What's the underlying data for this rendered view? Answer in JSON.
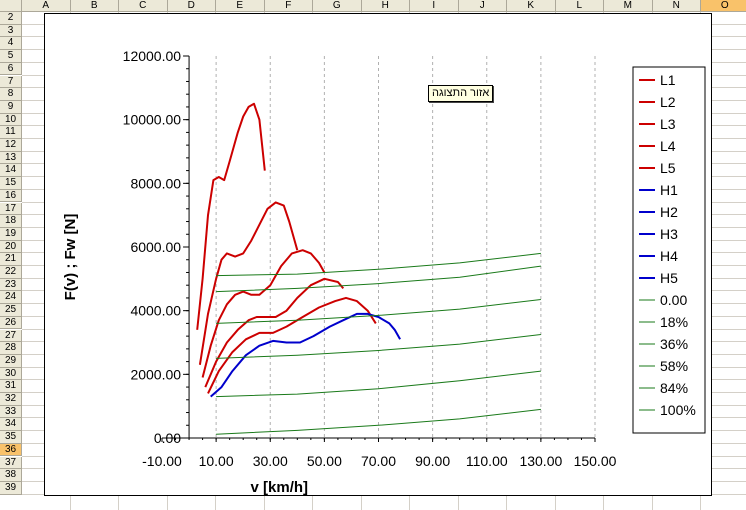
{
  "sheet": {
    "columns": [
      "A",
      "B",
      "C",
      "D",
      "E",
      "F",
      "G",
      "H",
      "I",
      "J",
      "K",
      "L",
      "M",
      "N",
      "O"
    ],
    "selected_column": "O",
    "rows": [
      "2",
      "3",
      "4",
      "5",
      "6",
      "7",
      "8",
      "9",
      "10",
      "11",
      "12",
      "13",
      "14",
      "15",
      "16",
      "17",
      "18",
      "19",
      "20",
      "21",
      "22",
      "23",
      "24",
      "25",
      "26",
      "27",
      "28",
      "29",
      "30",
      "31",
      "32",
      "33",
      "34",
      "35",
      "36",
      "37",
      "38",
      "39"
    ],
    "selected_row": "36"
  },
  "chart_tag": "אזור התצוגה",
  "colors": {
    "L": "#cc0000",
    "H": "#0000cc",
    "G": "#1a7a1a",
    "plot_grid": "#b0b0b0"
  },
  "chart_data": {
    "type": "line",
    "xlabel": "v [km/h]",
    "ylabel": "F(v) ; Fw [N]",
    "xlim": [
      -10,
      150
    ],
    "ylim": [
      0,
      12000
    ],
    "xticks": [
      "-10.00",
      "10.00",
      "30.00",
      "50.00",
      "70.00",
      "90.00",
      "110.00",
      "130.00",
      "150.00"
    ],
    "yticks": [
      "0.00",
      "2000.00",
      "4000.00",
      "6000.00",
      "8000.00",
      "10000.00",
      "12000.00"
    ],
    "x_gridlines": true,
    "legend_position": "right",
    "series": [
      {
        "name": "L1",
        "color_key": "L",
        "points": [
          [
            3,
            3400
          ],
          [
            5,
            5000
          ],
          [
            7,
            7000
          ],
          [
            9,
            8100
          ],
          [
            11,
            8200
          ],
          [
            13,
            8100
          ],
          [
            15,
            8700
          ],
          [
            18,
            9600
          ],
          [
            20,
            10100
          ],
          [
            22,
            10400
          ],
          [
            24,
            10500
          ],
          [
            26,
            10000
          ],
          [
            27,
            9200
          ],
          [
            28,
            8400
          ]
        ]
      },
      {
        "name": "L2",
        "color_key": "L",
        "points": [
          [
            4,
            2300
          ],
          [
            7,
            3900
          ],
          [
            10,
            5000
          ],
          [
            12,
            5600
          ],
          [
            14,
            5800
          ],
          [
            17,
            5700
          ],
          [
            20,
            5800
          ],
          [
            23,
            6200
          ],
          [
            26,
            6700
          ],
          [
            29,
            7200
          ],
          [
            32,
            7400
          ],
          [
            35,
            7300
          ],
          [
            37,
            6800
          ],
          [
            39,
            6200
          ],
          [
            40,
            5900
          ]
        ]
      },
      {
        "name": "L3",
        "color_key": "L",
        "points": [
          [
            5,
            1900
          ],
          [
            8,
            2900
          ],
          [
            11,
            3700
          ],
          [
            14,
            4200
          ],
          [
            17,
            4500
          ],
          [
            20,
            4600
          ],
          [
            23,
            4500
          ],
          [
            26,
            4500
          ],
          [
            30,
            4800
          ],
          [
            34,
            5400
          ],
          [
            38,
            5800
          ],
          [
            42,
            5900
          ],
          [
            45,
            5800
          ],
          [
            48,
            5500
          ],
          [
            50,
            5200
          ]
        ]
      },
      {
        "name": "L4",
        "color_key": "L",
        "points": [
          [
            6,
            1600
          ],
          [
            10,
            2400
          ],
          [
            14,
            3000
          ],
          [
            18,
            3400
          ],
          [
            22,
            3700
          ],
          [
            25,
            3800
          ],
          [
            28,
            3800
          ],
          [
            32,
            3800
          ],
          [
            36,
            4000
          ],
          [
            40,
            4400
          ],
          [
            45,
            4800
          ],
          [
            50,
            5000
          ],
          [
            55,
            4900
          ],
          [
            57,
            4700
          ]
        ]
      },
      {
        "name": "L5",
        "color_key": "L",
        "points": [
          [
            7,
            1400
          ],
          [
            11,
            2100
          ],
          [
            16,
            2700
          ],
          [
            21,
            3100
          ],
          [
            26,
            3300
          ],
          [
            31,
            3300
          ],
          [
            36,
            3500
          ],
          [
            42,
            3800
          ],
          [
            48,
            4100
          ],
          [
            54,
            4300
          ],
          [
            58,
            4400
          ],
          [
            62,
            4300
          ],
          [
            66,
            4000
          ],
          [
            69,
            3600
          ]
        ]
      },
      {
        "name": "H1",
        "color_key": "H",
        "points": [
          [
            8,
            1300
          ],
          [
            12,
            1600
          ],
          [
            16,
            2100
          ],
          [
            21,
            2600
          ],
          [
            26,
            2900
          ],
          [
            31,
            3050
          ],
          [
            36,
            3000
          ],
          [
            41,
            3000
          ],
          [
            46,
            3200
          ],
          [
            52,
            3500
          ],
          [
            57,
            3700
          ],
          [
            62,
            3900
          ],
          [
            66,
            3900
          ],
          [
            70,
            3800
          ],
          [
            74,
            3600
          ],
          [
            76,
            3400
          ],
          [
            78,
            3100
          ]
        ]
      },
      {
        "name": "H2",
        "color_key": "H",
        "points": []
      },
      {
        "name": "H3",
        "color_key": "H",
        "points": []
      },
      {
        "name": "H4",
        "color_key": "H",
        "points": []
      },
      {
        "name": "H5",
        "color_key": "H",
        "points": []
      },
      {
        "name": "0.00",
        "color_key": "G",
        "points": [
          [
            10,
            120
          ],
          [
            40,
            240
          ],
          [
            70,
            400
          ],
          [
            100,
            600
          ],
          [
            130,
            900
          ]
        ]
      },
      {
        "name": "18%",
        "color_key": "G",
        "points": [
          [
            10,
            1300
          ],
          [
            40,
            1380
          ],
          [
            70,
            1550
          ],
          [
            100,
            1800
          ],
          [
            130,
            2100
          ]
        ]
      },
      {
        "name": "36%",
        "color_key": "G",
        "points": [
          [
            10,
            2500
          ],
          [
            40,
            2600
          ],
          [
            70,
            2750
          ],
          [
            100,
            2950
          ],
          [
            130,
            3250
          ]
        ]
      },
      {
        "name": "58%",
        "color_key": "G",
        "points": [
          [
            10,
            3600
          ],
          [
            40,
            3700
          ],
          [
            70,
            3850
          ],
          [
            100,
            4050
          ],
          [
            130,
            4350
          ]
        ]
      },
      {
        "name": "84%",
        "color_key": "G",
        "points": [
          [
            10,
            4600
          ],
          [
            40,
            4700
          ],
          [
            70,
            4850
          ],
          [
            100,
            5050
          ],
          [
            130,
            5400
          ]
        ]
      },
      {
        "name": "100%",
        "color_key": "G",
        "points": [
          [
            10,
            5100
          ],
          [
            40,
            5150
          ],
          [
            70,
            5300
          ],
          [
            100,
            5500
          ],
          [
            130,
            5800
          ]
        ]
      }
    ]
  }
}
